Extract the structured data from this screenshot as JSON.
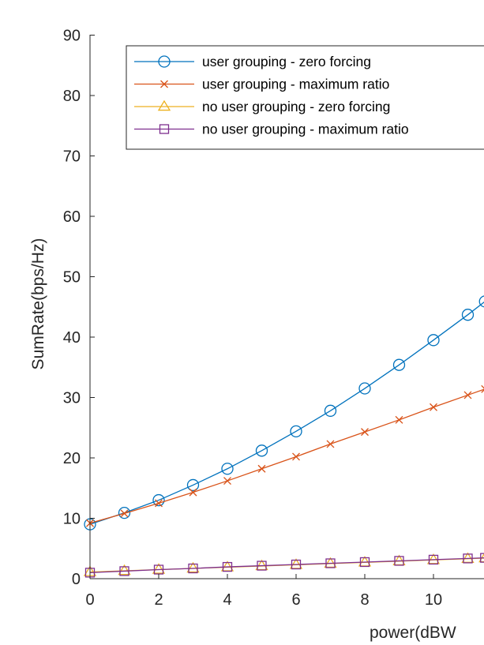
{
  "chart_data": {
    "type": "line",
    "xlabel": "power(dBW",
    "ylabel": "SumRate(bps/Hz)",
    "xlim": [
      0,
      11.5
    ],
    "ylim": [
      0,
      90
    ],
    "x_ticks": [
      "0",
      "2",
      "4",
      "6",
      "8",
      "10"
    ],
    "y_ticks": [
      "0",
      "10",
      "20",
      "30",
      "40",
      "50",
      "60",
      "70",
      "80",
      "90"
    ],
    "x_tick_values": [
      0,
      2,
      4,
      6,
      8,
      10
    ],
    "y_tick_values": [
      0,
      10,
      20,
      30,
      40,
      50,
      60,
      70,
      80,
      90
    ],
    "grid": false,
    "legend_position": "top-right",
    "series": [
      {
        "name": "user grouping - zero forcing",
        "color": "#0072BD",
        "marker": "circle",
        "x": [
          0,
          1,
          2,
          3,
          4,
          5,
          6,
          7,
          8,
          9,
          10,
          11,
          11.5
        ],
        "y": [
          9.0,
          10.9,
          13.0,
          15.5,
          18.2,
          21.2,
          24.4,
          27.8,
          31.5,
          35.4,
          39.5,
          43.7,
          45.9
        ]
      },
      {
        "name": "user grouping - maximum ratio",
        "color": "#D95319",
        "marker": "x",
        "x": [
          0,
          1,
          2,
          3,
          4,
          5,
          6,
          7,
          8,
          9,
          10,
          11,
          11.5
        ],
        "y": [
          9.2,
          10.8,
          12.5,
          14.3,
          16.2,
          18.2,
          20.2,
          22.3,
          24.3,
          26.3,
          28.4,
          30.4,
          31.4
        ]
      },
      {
        "name": "no user grouping - zero forcing",
        "color": "#EDB120",
        "marker": "triangle",
        "x": [
          0,
          1,
          2,
          3,
          4,
          5,
          6,
          7,
          8,
          9,
          10,
          11,
          11.5
        ],
        "y": [
          1.1,
          1.3,
          1.5,
          1.7,
          1.9,
          2.1,
          2.3,
          2.5,
          2.7,
          2.9,
          3.1,
          3.3,
          3.4
        ]
      },
      {
        "name": "no user grouping - maximum ratio",
        "color": "#7E2F8E",
        "marker": "square",
        "x": [
          0,
          1,
          2,
          3,
          4,
          5,
          6,
          7,
          8,
          9,
          10,
          11,
          11.5
        ],
        "y": [
          1.0,
          1.25,
          1.5,
          1.7,
          1.95,
          2.15,
          2.35,
          2.55,
          2.75,
          2.95,
          3.15,
          3.35,
          3.45
        ]
      }
    ]
  }
}
